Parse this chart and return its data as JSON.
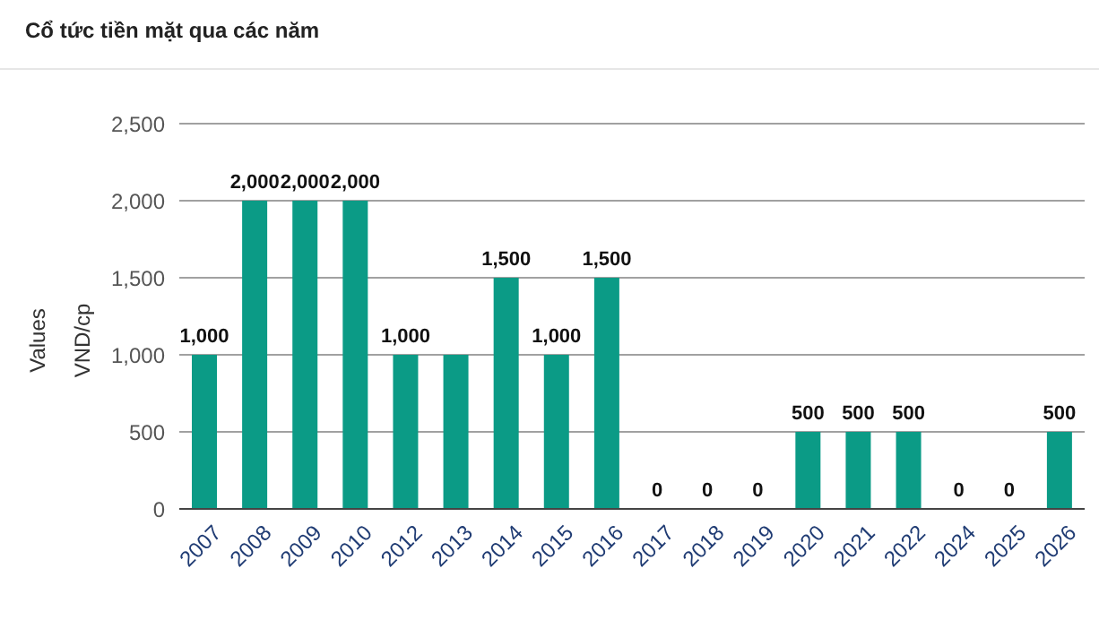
{
  "chart_data": {
    "type": "bar",
    "title": "Cổ tức tiền mặt qua các năm",
    "ylabel": "Values",
    "annotations": [
      "VND/cp"
    ],
    "categories": [
      "2007",
      "2008",
      "2009",
      "2010",
      "2012",
      "2013",
      "2014",
      "2015",
      "2016",
      "2017",
      "2018",
      "2019",
      "2020",
      "2021",
      "2022",
      "2024",
      "2025",
      "2026"
    ],
    "values": [
      1000,
      2000,
      2000,
      2000,
      1000,
      1000,
      1500,
      1000,
      1500,
      0,
      0,
      0,
      500,
      500,
      500,
      0,
      0,
      500
    ],
    "value_labels": [
      "1,000",
      "2,000",
      "2,000",
      "2,000",
      "1,000",
      null,
      "1,500",
      "1,000",
      "1,500",
      "0",
      "0",
      "0",
      "500",
      "500",
      "500",
      "0",
      "0",
      "500"
    ],
    "color": "#0b9b86",
    "ylim": [
      0,
      2500
    ],
    "yticks": [
      0,
      500,
      {
        "value": 1000,
        "label": "1,000"
      },
      {
        "value": 1500,
        "label": "1,500"
      },
      {
        "value": 2000,
        "label": "2,000"
      },
      {
        "value": 2500,
        "label": "2,500"
      }
    ],
    "grid": "y"
  }
}
